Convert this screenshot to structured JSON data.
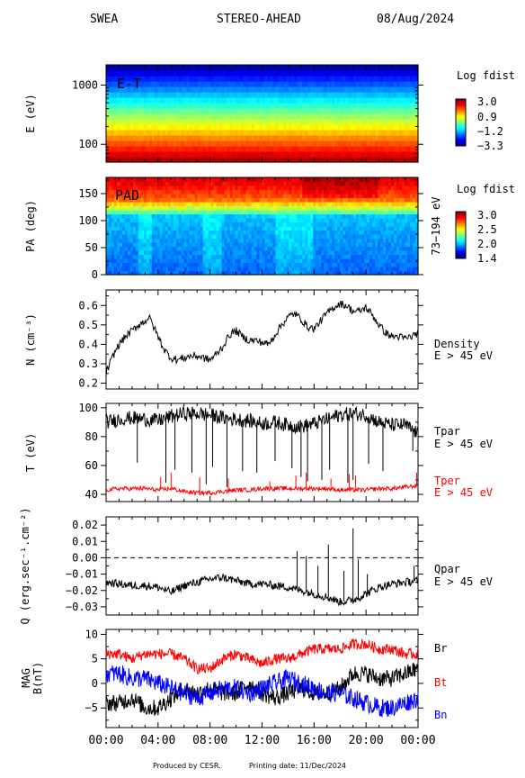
{
  "header": {
    "instrument": "SWEA",
    "spacecraft": "STEREO-AHEAD",
    "date": "08/Aug/2024"
  },
  "footer": {
    "produced_by": "Produced by CESR.",
    "printing": "Printing date: 11/Dec/2024"
  },
  "colors": {
    "tpar": "#000000",
    "tper": "#ff0000",
    "br": "#000000",
    "bt": "#ff0000",
    "bn": "#0000ff"
  },
  "chart_data": [
    {
      "type": "heatmap",
      "id": "et",
      "panel_label": "E-T",
      "ylabel": "E (eV)",
      "yscale": "log",
      "ylim": [
        50,
        2200
      ],
      "yticks": [
        100,
        1000
      ],
      "ytick_labels": [
        "100",
        "1000"
      ],
      "xlim": [
        0,
        24
      ],
      "colorbar": {
        "title": "Log fdist",
        "ticks": [
          "3.0",
          "0.9",
          "−1.2",
          "−3.3"
        ],
        "range": [
          -3.3,
          3.0
        ]
      },
      "note": "log fdist decreases with energy from ~3.0 at 50 eV to ~-3.3 at 2200 eV"
    },
    {
      "type": "heatmap",
      "id": "pad",
      "panel_label": "PAD",
      "ylabel": "PA (deg)",
      "right_label": "73−194 eV",
      "ylim": [
        0,
        180
      ],
      "yticks": [
        0,
        50,
        100,
        150
      ],
      "ytick_labels": [
        "0",
        "50",
        "100",
        "150"
      ],
      "xlim": [
        0,
        24
      ],
      "colorbar": {
        "title": "Log fdist",
        "ticks": [
          "3.0",
          "2.5",
          "2.0",
          "1.4"
        ],
        "range": [
          1.4,
          3.0
        ]
      }
    },
    {
      "type": "line",
      "id": "density",
      "ylabel": "N (cm⁻³)",
      "ylim": [
        0.17,
        0.68
      ],
      "yticks": [
        0.2,
        0.3,
        0.4,
        0.5,
        0.6
      ],
      "ytick_labels": [
        "0.2",
        "0.3",
        "0.4",
        "0.5",
        "0.6"
      ],
      "xlim": [
        0,
        24
      ],
      "legend": [
        "Density",
        "E > 45 eV"
      ],
      "series": [
        {
          "name": "Density",
          "color": "#000000",
          "x": [
            0,
            0.3,
            0.6,
            1.0,
            1.5,
            2,
            2.5,
            3,
            3.3,
            3.6,
            4,
            4.5,
            5,
            5.5,
            6,
            6.5,
            7,
            7.5,
            8,
            8.5,
            9,
            9.5,
            10,
            10.5,
            11,
            11.5,
            12,
            12.5,
            13,
            13.5,
            14,
            14.5,
            15,
            15.5,
            16,
            16.5,
            17,
            17.5,
            18,
            18.5,
            19,
            19.5,
            20,
            20.5,
            21,
            21.5,
            22,
            22.5,
            23,
            23.5,
            24
          ],
          "y": [
            0.25,
            0.3,
            0.35,
            0.4,
            0.44,
            0.47,
            0.5,
            0.52,
            0.54,
            0.5,
            0.44,
            0.37,
            0.33,
            0.32,
            0.33,
            0.34,
            0.34,
            0.33,
            0.32,
            0.35,
            0.39,
            0.45,
            0.47,
            0.44,
            0.42,
            0.42,
            0.41,
            0.4,
            0.45,
            0.5,
            0.54,
            0.56,
            0.53,
            0.49,
            0.48,
            0.52,
            0.56,
            0.59,
            0.61,
            0.6,
            0.57,
            0.57,
            0.59,
            0.55,
            0.5,
            0.46,
            0.44,
            0.44,
            0.43,
            0.44,
            0.46
          ]
        }
      ]
    },
    {
      "type": "line",
      "id": "temperature",
      "ylabel": "T (eV)",
      "ylim": [
        35,
        103
      ],
      "yticks": [
        40,
        60,
        80,
        100
      ],
      "ytick_labels": [
        "40",
        "60",
        "80",
        "100"
      ],
      "xlim": [
        0,
        24
      ],
      "series": [
        {
          "name": "Tpar",
          "label2": "E > 45 eV",
          "color": "#000000",
          "x": [
            0,
            1,
            2,
            3,
            4,
            5,
            6,
            7,
            8,
            9,
            10,
            11,
            12,
            13,
            14,
            15,
            16,
            17,
            18,
            19,
            20,
            21,
            22,
            23,
            24
          ],
          "y": [
            90,
            92,
            93,
            92,
            91,
            94,
            96,
            96,
            95,
            93,
            92,
            91,
            89,
            90,
            88,
            87,
            89,
            92,
            95,
            96,
            95,
            90,
            88,
            88,
            82
          ],
          "dips": [
            [
              2.4,
              62
            ],
            [
              4.6,
              48
            ],
            [
              5.3,
              57
            ],
            [
              6.6,
              55
            ],
            [
              7.7,
              47
            ],
            [
              8.2,
              59
            ],
            [
              9.3,
              45
            ],
            [
              10.5,
              56
            ],
            [
              11.6,
              55
            ],
            [
              13.0,
              63
            ],
            [
              14.3,
              58
            ],
            [
              15.0,
              52
            ],
            [
              15.5,
              49
            ],
            [
              16.6,
              50
            ],
            [
              17.2,
              57
            ],
            [
              18.6,
              48
            ],
            [
              19.0,
              50
            ],
            [
              20.2,
              61
            ],
            [
              21.3,
              56
            ],
            [
              23.6,
              70
            ]
          ]
        },
        {
          "name": "Tper",
          "label2": "E > 45 eV",
          "color": "#ff0000",
          "x": [
            0,
            1,
            2,
            3,
            4,
            5,
            6,
            7,
            8,
            9,
            10,
            11,
            12,
            13,
            14,
            15,
            16,
            17,
            18,
            19,
            20,
            21,
            22,
            23,
            24
          ],
          "y": [
            43,
            44,
            44,
            44,
            43,
            44,
            42,
            41,
            41,
            42,
            43,
            43,
            44,
            44,
            44,
            44,
            44,
            44,
            43,
            43,
            43,
            44,
            44,
            45,
            46
          ],
          "spikes": [
            [
              4.2,
              52
            ],
            [
              5.0,
              55
            ],
            [
              7.2,
              52
            ],
            [
              9.4,
              51
            ],
            [
              12.6,
              49
            ],
            [
              14.6,
              53
            ],
            [
              15.4,
              55
            ],
            [
              17.3,
              51
            ],
            [
              18.7,
              54
            ],
            [
              19.2,
              53
            ],
            [
              23.9,
              55
            ]
          ]
        }
      ]
    },
    {
      "type": "line",
      "id": "heatflux",
      "ylabel": "Q (erg.sec⁻¹.cm⁻²)",
      "ylim": [
        -0.035,
        0.025
      ],
      "yticks": [
        -0.03,
        -0.02,
        -0.01,
        0.0,
        0.01,
        0.02
      ],
      "ytick_labels": [
        "−0.03",
        "−0.02",
        "−0.01",
        "0.00",
        "0.01",
        "0.02"
      ],
      "xlim": [
        0,
        24
      ],
      "zero_line": true,
      "legend": [
        "Qpar",
        "E > 45 eV"
      ],
      "series": [
        {
          "name": "Qpar",
          "color": "#000000",
          "x": [
            0,
            1,
            2,
            3,
            4,
            5,
            6,
            7,
            8,
            9,
            10,
            11,
            12,
            13,
            14,
            15,
            16,
            17,
            18,
            19,
            20,
            21,
            22,
            23,
            24
          ],
          "y": [
            -0.015,
            -0.016,
            -0.017,
            -0.017,
            -0.018,
            -0.021,
            -0.017,
            -0.015,
            -0.013,
            -0.012,
            -0.014,
            -0.016,
            -0.016,
            -0.017,
            -0.018,
            -0.02,
            -0.022,
            -0.024,
            -0.027,
            -0.026,
            -0.022,
            -0.018,
            -0.016,
            -0.015,
            -0.014
          ],
          "spikes": [
            [
              14.7,
              0.004
            ],
            [
              15.4,
              0.001
            ],
            [
              16.3,
              -0.005
            ],
            [
              17.1,
              0.008
            ],
            [
              18.3,
              -0.008
            ],
            [
              19.0,
              0.018
            ],
            [
              19.4,
              -0.001
            ],
            [
              20.1,
              -0.01
            ],
            [
              23.7,
              -0.005
            ]
          ]
        }
      ]
    },
    {
      "type": "line",
      "id": "mag",
      "ylabel": "MAG",
      "ylabel2": "B(nT)",
      "ylim": [
        -9,
        11
      ],
      "yticks": [
        -5,
        0,
        5,
        10
      ],
      "ytick_labels": [
        "−5",
        "0",
        "5",
        "10"
      ],
      "xlim": [
        0,
        24
      ],
      "xticks": [
        0,
        4,
        8,
        12,
        16,
        20,
        24
      ],
      "xtick_labels": [
        "00:00",
        "04:00",
        "08:00",
        "12:00",
        "16:00",
        "20:00",
        "00:00"
      ],
      "series": [
        {
          "name": "Br",
          "color": "#000000",
          "x": [
            0,
            1,
            2,
            3,
            4,
            5,
            6,
            7,
            8,
            9,
            10,
            11,
            12,
            13,
            14,
            15,
            16,
            17,
            18,
            19,
            20,
            21,
            22,
            23,
            24
          ],
          "y": [
            -4,
            -4,
            -3,
            -5,
            -5,
            -3,
            -1,
            -2,
            -1,
            -2,
            -2,
            0,
            -2,
            -3,
            -2,
            -1,
            -2,
            -2,
            -1,
            2,
            2,
            1,
            1,
            2,
            3
          ]
        },
        {
          "name": "Bt",
          "color": "#ff0000",
          "x": [
            0,
            1,
            2,
            3,
            4,
            5,
            6,
            7,
            8,
            9,
            10,
            11,
            12,
            13,
            14,
            15,
            16,
            17,
            18,
            19,
            20,
            21,
            22,
            23,
            24
          ],
          "y": [
            6,
            6,
            5,
            6,
            6,
            6,
            5,
            3,
            3,
            5,
            6,
            5,
            4,
            5,
            5,
            6,
            7,
            7,
            7,
            8,
            8,
            7,
            7,
            6,
            6
          ]
        },
        {
          "name": "Bn",
          "color": "#0000ff",
          "x": [
            0,
            1,
            2,
            3,
            4,
            5,
            6,
            7,
            8,
            9,
            10,
            11,
            12,
            13,
            14,
            15,
            16,
            17,
            18,
            19,
            20,
            21,
            22,
            23,
            24
          ],
          "y": [
            2,
            2,
            1,
            1,
            0,
            -1,
            -2,
            -3,
            -2,
            -1,
            -1,
            -2,
            -1,
            0,
            1,
            0,
            -1,
            -2,
            -2,
            -3,
            -4,
            -5,
            -5,
            -4,
            -3
          ]
        }
      ]
    }
  ]
}
